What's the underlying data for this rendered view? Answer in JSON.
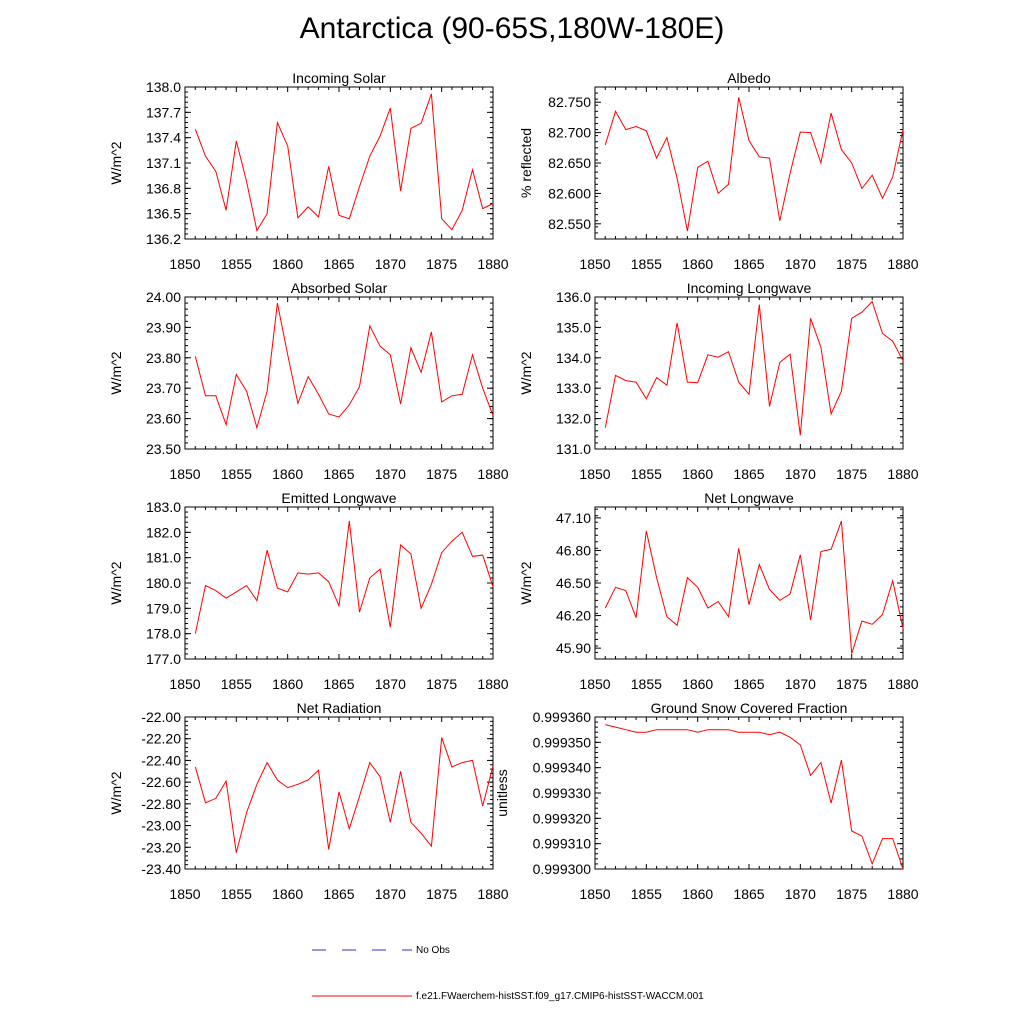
{
  "figure": {
    "title": "Antarctica (90-65S,180W-180E)",
    "colors": {
      "model": "#ff0000",
      "obs": "#3030c0",
      "axis": "#000000"
    }
  },
  "legend": {
    "obs_label": "No Obs",
    "model_label": "f.e21.FWaerchem-histSST.f09_g17.CMIP6-histSST-WACCM.001"
  },
  "chart_data": [
    {
      "type": "line",
      "title": "Incoming Solar",
      "xlabel": "",
      "ylabel": "W/m^2",
      "xlim": [
        1850,
        1880
      ],
      "ylim": [
        136.2,
        138.0
      ],
      "xticks": [
        1850,
        1855,
        1860,
        1865,
        1870,
        1875,
        1880
      ],
      "yticks": [
        "136.2",
        "136.5",
        "136.8",
        "137.1",
        "137.4",
        "137.7",
        "138.0"
      ],
      "x": [
        1851,
        1852,
        1853,
        1854,
        1855,
        1856,
        1857,
        1858,
        1859,
        1860,
        1861,
        1862,
        1863,
        1864,
        1865,
        1866,
        1867,
        1868,
        1869,
        1870,
        1871,
        1872,
        1873,
        1874,
        1875,
        1876,
        1877,
        1878,
        1879,
        1880
      ],
      "values": [
        137.5,
        137.18,
        137.0,
        136.54,
        137.36,
        136.88,
        136.3,
        136.5,
        137.58,
        137.3,
        136.45,
        136.58,
        136.46,
        137.06,
        136.48,
        136.44,
        136.82,
        137.18,
        137.42,
        137.75,
        136.77,
        137.51,
        137.57,
        137.92,
        136.44,
        136.31,
        136.54,
        137.02,
        136.56,
        136.62
      ]
    },
    {
      "type": "line",
      "title": "Albedo",
      "xlabel": "",
      "ylabel": "% reflected",
      "xlim": [
        1850,
        1880
      ],
      "ylim": [
        82.525,
        82.775
      ],
      "xticks": [
        1850,
        1855,
        1860,
        1865,
        1870,
        1875,
        1880
      ],
      "yticks": [
        "82.550",
        "82.600",
        "82.650",
        "82.700",
        "82.750"
      ],
      "x": [
        1851,
        1852,
        1853,
        1854,
        1855,
        1856,
        1857,
        1858,
        1859,
        1860,
        1861,
        1862,
        1863,
        1864,
        1865,
        1866,
        1867,
        1868,
        1869,
        1870,
        1871,
        1872,
        1873,
        1874,
        1875,
        1876,
        1877,
        1878,
        1879,
        1880
      ],
      "values": [
        82.68,
        82.735,
        82.705,
        82.71,
        82.703,
        82.658,
        82.692,
        82.625,
        82.538,
        82.643,
        82.653,
        82.6,
        82.615,
        82.758,
        82.687,
        82.66,
        82.658,
        82.555,
        82.633,
        82.701,
        82.7,
        82.65,
        82.732,
        82.672,
        82.65,
        82.608,
        82.63,
        82.592,
        82.627,
        82.705
      ]
    },
    {
      "type": "line",
      "title": "Absorbed Solar",
      "xlabel": "",
      "ylabel": "W/m^2",
      "xlim": [
        1850,
        1880
      ],
      "ylim": [
        23.5,
        24.0
      ],
      "xticks": [
        1850,
        1855,
        1860,
        1865,
        1870,
        1875,
        1880
      ],
      "yticks": [
        "23.50",
        "23.60",
        "23.70",
        "23.80",
        "23.90",
        "24.00"
      ],
      "x": [
        1851,
        1852,
        1853,
        1854,
        1855,
        1856,
        1857,
        1858,
        1859,
        1860,
        1861,
        1862,
        1863,
        1864,
        1865,
        1866,
        1867,
        1868,
        1869,
        1870,
        1871,
        1872,
        1873,
        1874,
        1875,
        1876,
        1877,
        1878,
        1879,
        1880
      ],
      "values": [
        23.805,
        23.675,
        23.675,
        23.58,
        23.745,
        23.69,
        23.57,
        23.69,
        23.98,
        23.81,
        23.65,
        23.738,
        23.68,
        23.615,
        23.605,
        23.645,
        23.705,
        23.905,
        23.838,
        23.81,
        23.648,
        23.833,
        23.752,
        23.885,
        23.655,
        23.675,
        23.68,
        23.81,
        23.7,
        23.61
      ]
    },
    {
      "type": "line",
      "title": "Incoming Longwave",
      "xlabel": "",
      "ylabel": "W/m^2",
      "xlim": [
        1850,
        1880
      ],
      "ylim": [
        131.0,
        136.0
      ],
      "xticks": [
        1850,
        1855,
        1860,
        1865,
        1870,
        1875,
        1880
      ],
      "yticks": [
        "131.0",
        "132.0",
        "133.0",
        "134.0",
        "135.0",
        "136.0"
      ],
      "x": [
        1851,
        1852,
        1853,
        1854,
        1855,
        1856,
        1857,
        1858,
        1859,
        1860,
        1861,
        1862,
        1863,
        1864,
        1865,
        1866,
        1867,
        1868,
        1869,
        1870,
        1871,
        1872,
        1873,
        1874,
        1875,
        1876,
        1877,
        1878,
        1879,
        1880
      ],
      "values": [
        131.7,
        133.42,
        133.25,
        133.2,
        132.65,
        133.35,
        133.1,
        135.15,
        133.2,
        133.18,
        134.1,
        134.02,
        134.2,
        133.2,
        132.8,
        135.75,
        132.4,
        133.85,
        134.12,
        131.45,
        135.3,
        134.35,
        132.15,
        132.9,
        135.3,
        135.5,
        135.85,
        134.8,
        134.55,
        133.9
      ]
    },
    {
      "type": "line",
      "title": "Emitted Longwave",
      "xlabel": "",
      "ylabel": "W/m^2",
      "xlim": [
        1850,
        1880
      ],
      "ylim": [
        177.0,
        183.0
      ],
      "xticks": [
        1850,
        1855,
        1860,
        1865,
        1870,
        1875,
        1880
      ],
      "yticks": [
        "177.0",
        "178.0",
        "179.0",
        "180.0",
        "181.0",
        "182.0",
        "183.0"
      ],
      "x": [
        1851,
        1852,
        1853,
        1854,
        1855,
        1856,
        1857,
        1858,
        1859,
        1860,
        1861,
        1862,
        1863,
        1864,
        1865,
        1866,
        1867,
        1868,
        1869,
        1870,
        1871,
        1872,
        1873,
        1874,
        1875,
        1876,
        1877,
        1878,
        1879,
        1880
      ],
      "values": [
        178.0,
        179.9,
        179.7,
        179.4,
        179.65,
        179.9,
        179.3,
        181.3,
        179.8,
        179.65,
        180.4,
        180.35,
        180.4,
        180.05,
        179.1,
        182.45,
        178.85,
        180.2,
        180.55,
        178.25,
        181.5,
        181.15,
        179.0,
        179.95,
        181.2,
        181.65,
        182.0,
        181.05,
        181.1,
        179.85
      ]
    },
    {
      "type": "line",
      "title": "Net Longwave",
      "xlabel": "",
      "ylabel": "W/m^2",
      "xlim": [
        1850,
        1880
      ],
      "ylim": [
        45.8,
        47.2
      ],
      "xticks": [
        1850,
        1855,
        1860,
        1865,
        1870,
        1875,
        1880
      ],
      "yticks": [
        "45.90",
        "46.20",
        "46.50",
        "46.80",
        "47.10"
      ],
      "x": [
        1851,
        1852,
        1853,
        1854,
        1855,
        1856,
        1857,
        1858,
        1859,
        1860,
        1861,
        1862,
        1863,
        1864,
        1865,
        1866,
        1867,
        1868,
        1869,
        1870,
        1871,
        1872,
        1873,
        1874,
        1875,
        1876,
        1877,
        1878,
        1879,
        1880
      ],
      "values": [
        46.27,
        46.46,
        46.43,
        46.18,
        46.98,
        46.55,
        46.19,
        46.11,
        46.55,
        46.46,
        46.27,
        46.33,
        46.19,
        46.82,
        46.3,
        46.67,
        46.44,
        46.34,
        46.4,
        46.76,
        46.16,
        46.79,
        46.81,
        47.07,
        45.85,
        46.15,
        46.12,
        46.21,
        46.52,
        46.08
      ]
    },
    {
      "type": "line",
      "title": "Net Radiation",
      "xlabel": "",
      "ylabel": "W/m^2",
      "xlim": [
        1850,
        1880
      ],
      "ylim": [
        -23.4,
        -22.0
      ],
      "xticks": [
        1850,
        1855,
        1860,
        1865,
        1870,
        1875,
        1880
      ],
      "yticks": [
        "-23.40",
        "-23.20",
        "-23.00",
        "-22.80",
        "-22.60",
        "-22.40",
        "-22.20",
        "-22.00"
      ],
      "x": [
        1851,
        1852,
        1853,
        1854,
        1855,
        1856,
        1857,
        1858,
        1859,
        1860,
        1861,
        1862,
        1863,
        1864,
        1865,
        1866,
        1867,
        1868,
        1869,
        1870,
        1871,
        1872,
        1873,
        1874,
        1875,
        1876,
        1877,
        1878,
        1879,
        1880
      ],
      "values": [
        -22.46,
        -22.79,
        -22.75,
        -22.59,
        -23.25,
        -22.88,
        -22.62,
        -22.42,
        -22.58,
        -22.65,
        -22.62,
        -22.58,
        -22.49,
        -23.22,
        -22.69,
        -23.03,
        -22.73,
        -22.42,
        -22.55,
        -22.97,
        -22.5,
        -22.97,
        -23.07,
        -23.19,
        -22.19,
        -22.46,
        -22.42,
        -22.4,
        -22.82,
        -22.45
      ]
    },
    {
      "type": "line",
      "title": "Ground Snow Covered Fraction",
      "xlabel": "",
      "ylabel": "unitless",
      "xlim": [
        1850,
        1880
      ],
      "ylim": [
        0.9993,
        0.99936
      ],
      "xticks": [
        1850,
        1855,
        1860,
        1865,
        1870,
        1875,
        1880
      ],
      "yticks": [
        "0.999300",
        "0.999310",
        "0.999320",
        "0.999330",
        "0.999340",
        "0.999350",
        "0.999360"
      ],
      "x": [
        1851,
        1852,
        1853,
        1854,
        1855,
        1856,
        1857,
        1858,
        1859,
        1860,
        1861,
        1862,
        1863,
        1864,
        1865,
        1866,
        1867,
        1868,
        1869,
        1870,
        1871,
        1872,
        1873,
        1874,
        1875,
        1876,
        1877,
        1878,
        1879,
        1880
      ],
      "values": [
        0.999357,
        0.999356,
        0.999355,
        0.999354,
        0.999354,
        0.999355,
        0.999355,
        0.999355,
        0.999355,
        0.999354,
        0.999355,
        0.999355,
        0.999355,
        0.999354,
        0.999354,
        0.999354,
        0.999353,
        0.999354,
        0.999352,
        0.999349,
        0.999337,
        0.999342,
        0.999326,
        0.999343,
        0.999315,
        0.999313,
        0.999302,
        0.999312,
        0.999312,
        0.9993
      ]
    }
  ]
}
